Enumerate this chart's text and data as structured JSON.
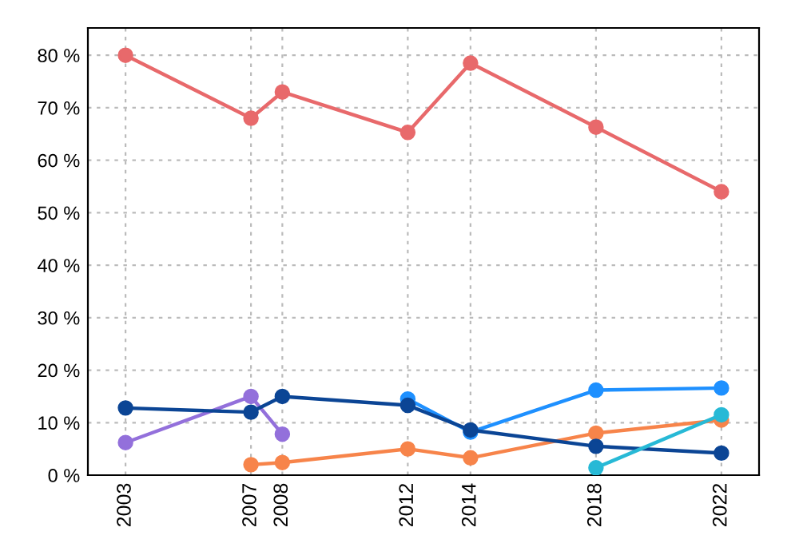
{
  "chart_data": {
    "type": "line",
    "marker": "circle",
    "line_style": "solid",
    "grid": true,
    "xlim": [
      2001.8,
      2023.2
    ],
    "ylim": [
      0,
      85.2
    ],
    "xticks": [
      2003,
      2007,
      2008,
      2012,
      2014,
      2018,
      2022
    ],
    "yticks": [
      {
        "value": 0,
        "label": "0 %"
      },
      {
        "value": 10,
        "label": "10 %"
      },
      {
        "value": 20,
        "label": "20 %"
      },
      {
        "value": 30,
        "label": "30 %"
      },
      {
        "value": 40,
        "label": "40 %"
      },
      {
        "value": 50,
        "label": "50 %"
      },
      {
        "value": 60,
        "label": "60 %"
      },
      {
        "value": 70,
        "label": "70 %"
      },
      {
        "value": 80,
        "label": "80 %"
      }
    ],
    "series": [
      {
        "color": "#e8696b",
        "x": [
          2003,
          2007,
          2008,
          2012,
          2014,
          2018,
          2022
        ],
        "values": [
          80,
          68,
          73,
          65.3,
          78.5,
          66.3,
          54
        ]
      },
      {
        "color": "#9370db",
        "x": [
          2003,
          2007,
          2008
        ],
        "values": [
          6.2,
          15,
          7.8
        ]
      },
      {
        "color": "#f7844a",
        "x": [
          2007,
          2008,
          2012,
          2014,
          2018,
          2022
        ],
        "values": [
          2,
          2.4,
          5,
          3.3,
          8,
          10.5
        ]
      },
      {
        "color": "#1e90ff",
        "x": [
          2012,
          2014,
          2018,
          2022
        ],
        "values": [
          14.5,
          8.2,
          16.2,
          16.6
        ]
      },
      {
        "color": "#0b4595",
        "x": [
          2003,
          2007,
          2008,
          2012,
          2014,
          2018,
          2022
        ],
        "values": [
          12.8,
          12,
          15,
          13.3,
          8.6,
          5.5,
          4.2
        ]
      },
      {
        "color": "#27b9d6",
        "x": [
          2018,
          2022
        ],
        "values": [
          1.4,
          11.5
        ]
      }
    ]
  }
}
